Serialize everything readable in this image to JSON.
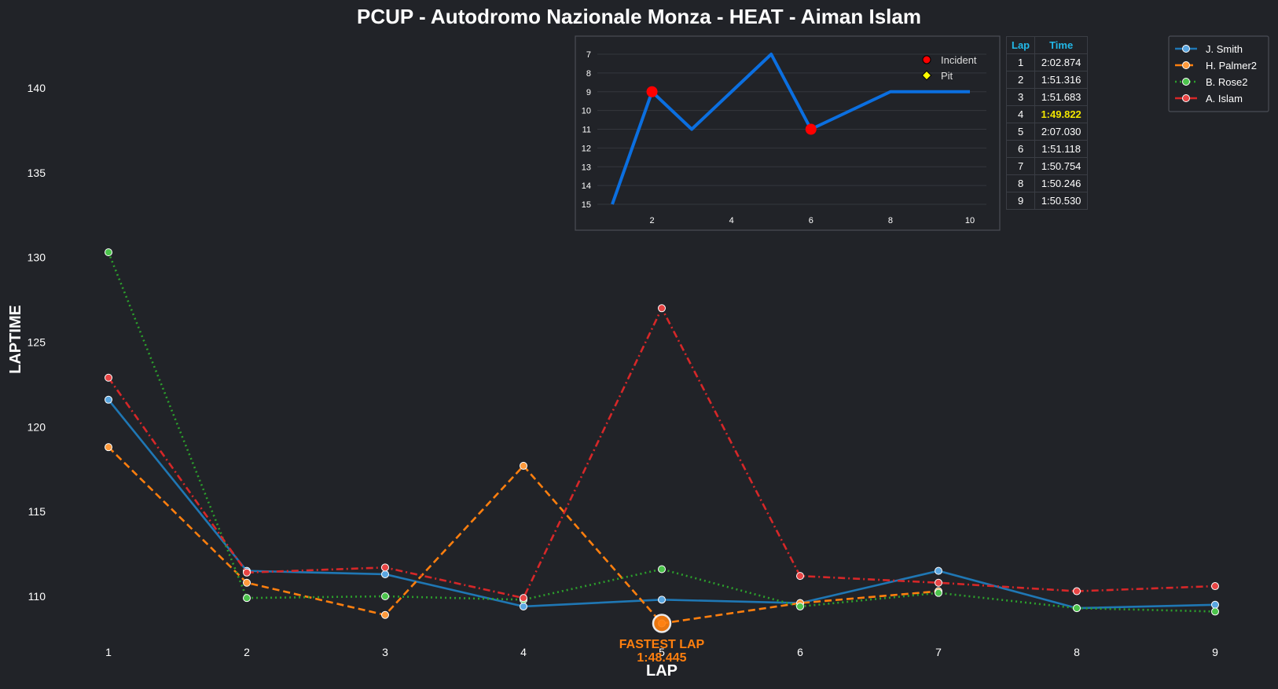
{
  "title": "PCUP - Autodromo Nazionale Monza - HEAT - Aiman Islam",
  "chart_data": [
    {
      "type": "line",
      "title": "PCUP - Autodromo Nazionale Monza - HEAT - Aiman Islam",
      "xlabel": "LAP",
      "ylabel": "LAPTIME",
      "x": [
        1,
        2,
        3,
        4,
        5,
        6,
        7,
        8,
        9
      ],
      "xlim": [
        1,
        9
      ],
      "ylim": [
        107,
        143
      ],
      "yticks": [
        110,
        115,
        120,
        125,
        130,
        135,
        140
      ],
      "grid": false,
      "legend_position": "top-right",
      "series": [
        {
          "name": "J. Smith",
          "color": "#1f77b4",
          "marker_fill": "#5aa6e0",
          "style": "solid",
          "values": [
            121.6,
            111.5,
            111.3,
            109.4,
            109.8,
            109.6,
            111.5,
            109.3,
            109.5
          ]
        },
        {
          "name": "H. Palmer2",
          "color": "#ff7f0e",
          "marker_fill": "#ff9a3c",
          "style": "dashed",
          "values": [
            118.8,
            110.8,
            108.9,
            117.7,
            108.4,
            109.6,
            110.3,
            null,
            null
          ]
        },
        {
          "name": "B. Rose2",
          "color": "#2ca02c",
          "marker_fill": "#4cc44c",
          "style": "dotted",
          "values": [
            130.3,
            109.9,
            110.0,
            109.8,
            111.6,
            109.4,
            110.2,
            109.3,
            109.1
          ]
        },
        {
          "name": "A. Islam",
          "color": "#d62728",
          "marker_fill": "#e84545",
          "style": "dashdot",
          "values": [
            122.9,
            111.4,
            111.7,
            109.9,
            127.0,
            111.2,
            110.8,
            110.3,
            110.6
          ]
        }
      ],
      "fastest_lap": {
        "label": "FASTEST LAP",
        "time": "1:48.445",
        "x": 5,
        "y": 108.4,
        "color": "#ff7f0e"
      }
    },
    {
      "type": "line",
      "title": "",
      "x": [
        1,
        2,
        3,
        4,
        5,
        6,
        7,
        8,
        9,
        10
      ],
      "values": [
        15,
        9,
        11,
        9,
        7,
        11,
        10,
        9,
        9,
        9
      ],
      "ylim_inverted": [
        7,
        15
      ],
      "yticks": [
        7,
        8,
        9,
        10,
        11,
        12,
        13,
        14,
        15
      ],
      "xticks": [
        2,
        4,
        6,
        8,
        10
      ],
      "line_color": "#0b6fe0",
      "incidents": [
        {
          "x": 2,
          "y": 9
        },
        {
          "x": 6,
          "y": 11
        }
      ],
      "legend": {
        "incident_label": "Incident",
        "pit_label": "Pit",
        "incident_color": "#ff0000",
        "pit_color": "#ffff00"
      }
    }
  ],
  "lap_table": {
    "headers": [
      "Lap",
      "Time"
    ],
    "rows": [
      {
        "lap": "1",
        "time": "2:02.874",
        "best": false
      },
      {
        "lap": "2",
        "time": "1:51.316",
        "best": false
      },
      {
        "lap": "3",
        "time": "1:51.683",
        "best": false
      },
      {
        "lap": "4",
        "time": "1:49.822",
        "best": true
      },
      {
        "lap": "5",
        "time": "2:07.030",
        "best": false
      },
      {
        "lap": "6",
        "time": "1:51.118",
        "best": false
      },
      {
        "lap": "7",
        "time": "1:50.754",
        "best": false
      },
      {
        "lap": "8",
        "time": "1:50.246",
        "best": false
      },
      {
        "lap": "9",
        "time": "1:50.530",
        "best": false
      }
    ]
  }
}
